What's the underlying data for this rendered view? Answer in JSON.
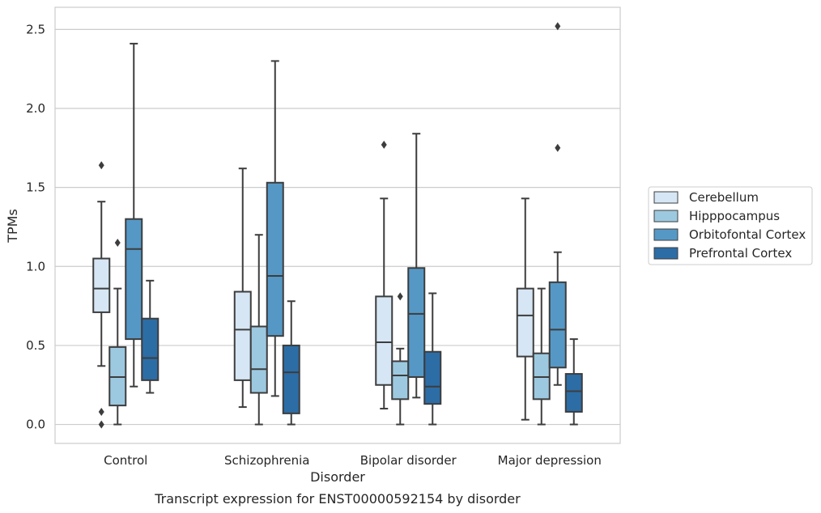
{
  "chart_data": {
    "type": "box",
    "caption": "Transcript expression for ENST00000592154 by disorder",
    "xlabel": "Disorder",
    "ylabel": "TPMs",
    "ylim": [
      -0.12,
      2.64
    ],
    "yticks": [
      "0.0",
      "0.5",
      "1.0",
      "1.5",
      "2.0",
      "2.5"
    ],
    "ytick_values": [
      0,
      0.5,
      1.0,
      1.5,
      2.0,
      2.5
    ],
    "grid": "horizontal",
    "legend_placement": "right",
    "categories": [
      "Control",
      "Schizophrenia",
      "Bipolar disorder",
      "Major depression"
    ],
    "series": [
      {
        "name": "Cerebellum",
        "color": "#d6e6f4",
        "boxes": [
          {
            "whisker_low": 0.37,
            "q1": 0.71,
            "median": 0.86,
            "q3": 1.05,
            "whisker_high": 1.41,
            "outliers": [
              1.64,
              0.08,
              0.0
            ]
          },
          {
            "whisker_low": 0.11,
            "q1": 0.28,
            "median": 0.6,
            "q3": 0.84,
            "whisker_high": 1.62,
            "outliers": []
          },
          {
            "whisker_low": 0.1,
            "q1": 0.25,
            "median": 0.52,
            "q3": 0.81,
            "whisker_high": 1.43,
            "outliers": [
              1.77
            ]
          },
          {
            "whisker_low": 0.03,
            "q1": 0.43,
            "median": 0.69,
            "q3": 0.86,
            "whisker_high": 1.43,
            "outliers": []
          }
        ]
      },
      {
        "name": "Hipppocampus",
        "color": "#9dc9e0",
        "boxes": [
          {
            "whisker_low": 0.0,
            "q1": 0.12,
            "median": 0.3,
            "q3": 0.49,
            "whisker_high": 0.86,
            "outliers": [
              1.15
            ]
          },
          {
            "whisker_low": 0.0,
            "q1": 0.2,
            "median": 0.35,
            "q3": 0.62,
            "whisker_high": 1.2,
            "outliers": []
          },
          {
            "whisker_low": 0.0,
            "q1": 0.16,
            "median": 0.31,
            "q3": 0.4,
            "whisker_high": 0.48,
            "outliers": [
              0.81
            ]
          },
          {
            "whisker_low": 0.0,
            "q1": 0.16,
            "median": 0.3,
            "q3": 0.45,
            "whisker_high": 0.86,
            "outliers": []
          }
        ]
      },
      {
        "name": "Orbitofontal Cortex",
        "color": "#5598c6",
        "boxes": [
          {
            "whisker_low": 0.24,
            "q1": 0.54,
            "median": 1.11,
            "q3": 1.3,
            "whisker_high": 2.41,
            "outliers": []
          },
          {
            "whisker_low": 0.18,
            "q1": 0.56,
            "median": 0.94,
            "q3": 1.53,
            "whisker_high": 2.3,
            "outliers": []
          },
          {
            "whisker_low": 0.17,
            "q1": 0.3,
            "median": 0.7,
            "q3": 0.99,
            "whisker_high": 1.84,
            "outliers": []
          },
          {
            "whisker_low": 0.25,
            "q1": 0.36,
            "median": 0.6,
            "q3": 0.9,
            "whisker_high": 1.09,
            "outliers": [
              2.52,
              1.75
            ]
          }
        ]
      },
      {
        "name": "Prefrontal Cortex",
        "color": "#2c6da6",
        "boxes": [
          {
            "whisker_low": 0.2,
            "q1": 0.28,
            "median": 0.42,
            "q3": 0.67,
            "whisker_high": 0.91,
            "outliers": []
          },
          {
            "whisker_low": 0.0,
            "q1": 0.07,
            "median": 0.33,
            "q3": 0.5,
            "whisker_high": 0.78,
            "outliers": []
          },
          {
            "whisker_low": 0.0,
            "q1": 0.13,
            "median": 0.24,
            "q3": 0.46,
            "whisker_high": 0.83,
            "outliers": []
          },
          {
            "whisker_low": 0.0,
            "q1": 0.08,
            "median": 0.21,
            "q3": 0.32,
            "whisker_high": 0.54,
            "outliers": []
          }
        ]
      }
    ]
  }
}
